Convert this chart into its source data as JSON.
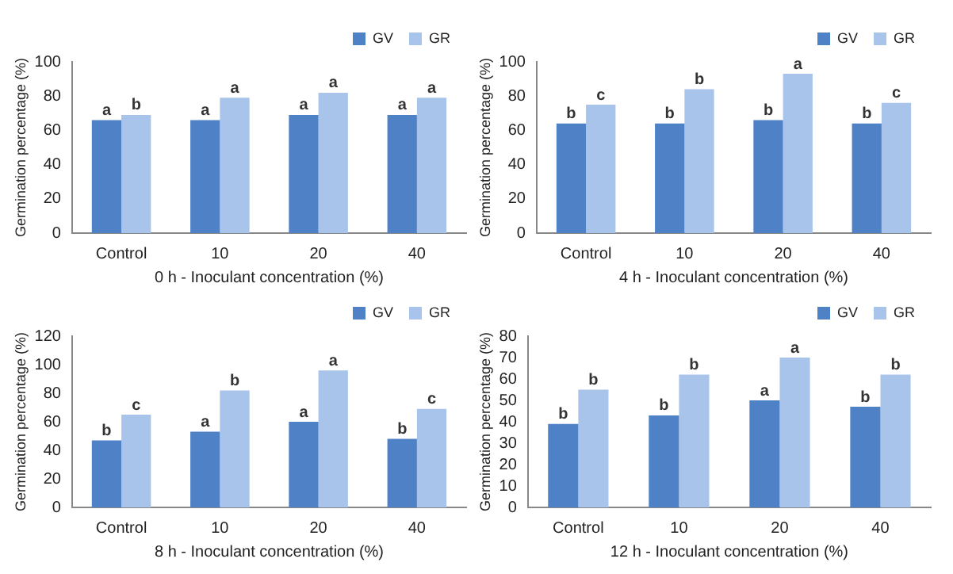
{
  "chart_data": [
    {
      "type": "bar",
      "xlabel": "0 h - Inoculant concentration (%)",
      "ylabel": "Germination percentage (%)",
      "categories": [
        "Control",
        "10",
        "20",
        "40"
      ],
      "series": [
        {
          "name": "GV",
          "color": "#4f81c7",
          "values": [
            66,
            66,
            69,
            69
          ]
        },
        {
          "name": "GR",
          "color": "#a9c4ea",
          "values": [
            69,
            79,
            82,
            79
          ]
        }
      ],
      "ylim": [
        0,
        100
      ],
      "yticks": [
        0,
        20,
        40,
        60,
        80,
        100
      ],
      "grid": false,
      "legend": "top right",
      "annotations": [
        {
          "text": "a",
          "x": "Control",
          "y": 66
        },
        {
          "text": "b",
          "x": "Control",
          "y": 69
        },
        {
          "text": "a",
          "x": "10",
          "y": 66
        },
        {
          "text": "a",
          "x": "10",
          "y": 79
        },
        {
          "text": "a",
          "x": "20",
          "y": 69
        },
        {
          "text": "a",
          "x": "20",
          "y": 82
        },
        {
          "text": "a",
          "x": "40",
          "y": 69
        },
        {
          "text": "a",
          "x": "40",
          "y": 79
        }
      ]
    },
    {
      "type": "bar",
      "xlabel": "4 h - Inoculant concentration (%)",
      "ylabel": "Germination percentage (%)",
      "categories": [
        "Control",
        "10",
        "20",
        "40"
      ],
      "series": [
        {
          "name": "GV",
          "color": "#4f81c7",
          "values": [
            64,
            64,
            66,
            64
          ]
        },
        {
          "name": "GR",
          "color": "#a9c4ea",
          "values": [
            75,
            84,
            93,
            76
          ]
        }
      ],
      "ylim": [
        0,
        100
      ],
      "yticks": [
        0,
        20,
        40,
        60,
        80,
        100
      ],
      "grid": false,
      "legend": "top right",
      "annotations": [
        {
          "text": "b",
          "x": "Control",
          "y": 64
        },
        {
          "text": "c",
          "x": "Control",
          "y": 75
        },
        {
          "text": "b",
          "x": "10",
          "y": 64
        },
        {
          "text": "b",
          "x": "10",
          "y": 84
        },
        {
          "text": "b",
          "x": "20",
          "y": 66
        },
        {
          "text": "a",
          "x": "20",
          "y": 93
        },
        {
          "text": "b",
          "x": "40",
          "y": 64
        },
        {
          "text": "c",
          "x": "40",
          "y": 76
        }
      ]
    },
    {
      "type": "bar",
      "xlabel": "8 h - Inoculant concentration (%)",
      "ylabel": "Germination percentage (%)",
      "categories": [
        "Control",
        "10",
        "20",
        "40"
      ],
      "series": [
        {
          "name": "GV",
          "color": "#4f81c7",
          "values": [
            47,
            53,
            60,
            48
          ]
        },
        {
          "name": "GR",
          "color": "#a9c4ea",
          "values": [
            65,
            82,
            96,
            69
          ]
        }
      ],
      "ylim": [
        0,
        120
      ],
      "yticks": [
        0,
        20,
        40,
        60,
        80,
        100,
        120
      ],
      "grid": false,
      "legend": "top right",
      "annotations": [
        {
          "text": "b",
          "x": "Control",
          "y": 47
        },
        {
          "text": "c",
          "x": "Control",
          "y": 65
        },
        {
          "text": "a",
          "x": "10",
          "y": 53
        },
        {
          "text": "b",
          "x": "10",
          "y": 82
        },
        {
          "text": "a",
          "x": "20",
          "y": 60
        },
        {
          "text": "a",
          "x": "20",
          "y": 96
        },
        {
          "text": "b",
          "x": "40",
          "y": 48
        },
        {
          "text": "c",
          "x": "40",
          "y": 69
        }
      ]
    },
    {
      "type": "bar",
      "xlabel": "12 h - Inoculant concentration (%)",
      "ylabel": "Germination percentage (%)",
      "categories": [
        "Control",
        "10",
        "20",
        "40"
      ],
      "series": [
        {
          "name": "GV",
          "color": "#4f81c7",
          "values": [
            39,
            43,
            50,
            47
          ]
        },
        {
          "name": "GR",
          "color": "#a9c4ea",
          "values": [
            55,
            62,
            70,
            62
          ]
        }
      ],
      "ylim": [
        0,
        80
      ],
      "yticks": [
        0,
        10,
        20,
        30,
        40,
        50,
        60,
        70,
        80
      ],
      "grid": false,
      "legend": "top right",
      "annotations": [
        {
          "text": "b",
          "x": "Control",
          "y": 39
        },
        {
          "text": "b",
          "x": "Control",
          "y": 55
        },
        {
          "text": "b",
          "x": "10",
          "y": 43
        },
        {
          "text": "b",
          "x": "10",
          "y": 62
        },
        {
          "text": "a",
          "x": "20",
          "y": 50
        },
        {
          "text": "a",
          "x": "20",
          "y": 70
        },
        {
          "text": "b",
          "x": "40",
          "y": 47
        },
        {
          "text": "b",
          "x": "40",
          "y": 62
        }
      ]
    }
  ]
}
